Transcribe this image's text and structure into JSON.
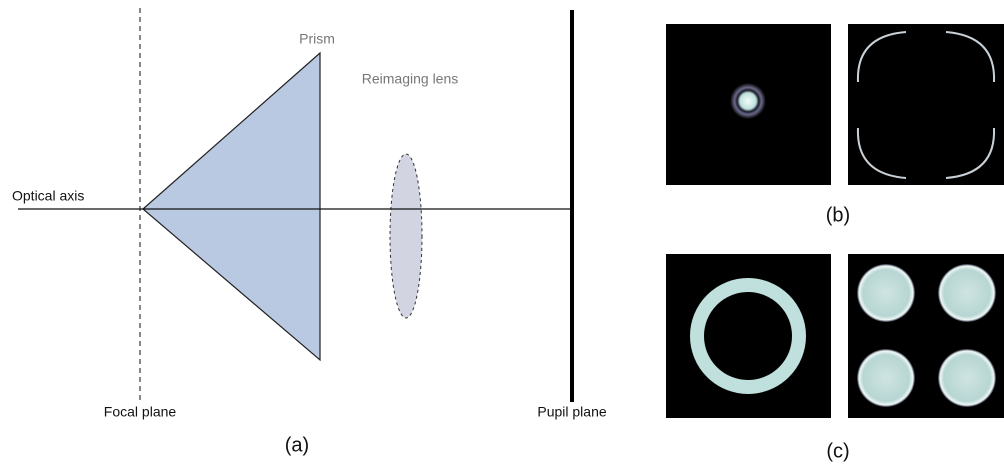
{
  "labels": {
    "optical_axis": "Optical axis",
    "prism": "Prism",
    "lens": "Reimaging lens",
    "focal_plane": "Focal plane",
    "pupil_plane": "Pupil plane"
  },
  "panels": {
    "a": "(a)",
    "b": "(b)",
    "c": "(c)"
  }
}
